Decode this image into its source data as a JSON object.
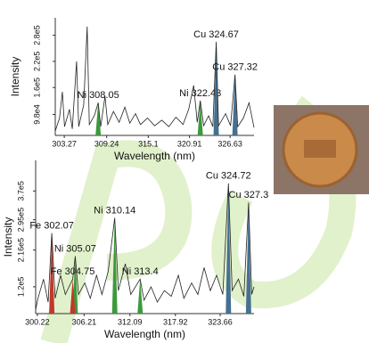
{
  "chart_data": [
    {
      "type": "line",
      "xlabel": "Wavelength (nm)",
      "ylabel": "Intensity",
      "xlim": [
        302,
        330
      ],
      "ylim": [
        50000,
        320000
      ],
      "xticks": [
        303.27,
        309.24,
        315.1,
        320.91,
        326.63
      ],
      "yticks": [
        {
          "value": 98000,
          "label": "9.8e4"
        },
        {
          "value": 160000,
          "label": "1.6e5"
        },
        {
          "value": 220000,
          "label": "2.2e5"
        },
        {
          "value": 280000,
          "label": "2.8e5"
        }
      ],
      "color": "#222222",
      "x": [
        302.0,
        302.6,
        303.0,
        303.3,
        304.0,
        304.4,
        305.0,
        305.3,
        306.0,
        306.5,
        306.8,
        307.5,
        308.05,
        308.4,
        309.0,
        309.4,
        310.2,
        311.0,
        311.8,
        312.5,
        313.3,
        314.0,
        315.0,
        316.0,
        317.0,
        318.0,
        319.0,
        320.0,
        320.8,
        321.5,
        322.0,
        322.43,
        322.9,
        323.6,
        324.2,
        324.67,
        325.0,
        326.0,
        326.7,
        327.32,
        327.7,
        328.5,
        329.3,
        330.0
      ],
      "values": [
        60000,
        90000,
        150000,
        70000,
        110000,
        65000,
        220000,
        70000,
        120000,
        300000,
        75000,
        95000,
        125000,
        70000,
        140000,
        75000,
        105000,
        80000,
        115000,
        78000,
        100000,
        75000,
        90000,
        72000,
        85000,
        70000,
        92000,
        75000,
        110000,
        165000,
        80000,
        130000,
        72000,
        95000,
        70000,
        265000,
        72000,
        100000,
        72000,
        190000,
        70000,
        90000,
        125000,
        68000
      ],
      "annotations": [
        {
          "text": "Ni 308.05",
          "x": 308.05,
          "y": 125000,
          "color": "#3c9a3c"
        },
        {
          "text": "Ni 322.43",
          "x": 322.43,
          "y": 130000,
          "color": "#3c9a3c"
        },
        {
          "text": "Cu 324.67",
          "x": 324.67,
          "y": 265000,
          "color": "#46708f"
        },
        {
          "text": "Cu 327.32",
          "x": 327.32,
          "y": 190000,
          "color": "#46708f"
        }
      ]
    },
    {
      "type": "line",
      "xlabel": "Wavelength (nm)",
      "ylabel": "Intensity",
      "xlim": [
        300,
        328
      ],
      "ylim": [
        50000,
        450000
      ],
      "xticks": [
        300.22,
        306.21,
        312.09,
        317.92,
        323.66
      ],
      "yticks": [
        {
          "value": 120000,
          "label": "1.2e5"
        },
        {
          "value": 216000,
          "label": "2.16e5"
        },
        {
          "value": 295000,
          "label": "2.95e5"
        },
        {
          "value": 370000,
          "label": "3.7e5"
        }
      ],
      "color": "#222222",
      "x": [
        300.0,
        300.3,
        301.0,
        301.6,
        302.07,
        302.5,
        303.2,
        303.8,
        304.75,
        305.07,
        305.5,
        306.3,
        307.0,
        307.8,
        308.5,
        309.3,
        310.14,
        310.6,
        311.5,
        312.2,
        313.4,
        313.9,
        314.8,
        315.6,
        316.5,
        317.4,
        318.3,
        319.0,
        320.0,
        320.8,
        321.6,
        322.4,
        323.2,
        324.0,
        324.72,
        325.2,
        326.0,
        326.7,
        327.3,
        327.7,
        328.0
      ],
      "values": [
        60000,
        90000,
        140000,
        80000,
        260000,
        90000,
        150000,
        100000,
        140000,
        200000,
        100000,
        130000,
        90000,
        150000,
        100000,
        160000,
        300000,
        110000,
        180000,
        100000,
        140000,
        85000,
        120000,
        80000,
        110000,
        95000,
        150000,
        90000,
        130000,
        100000,
        170000,
        110000,
        150000,
        100000,
        390000,
        110000,
        140000,
        95000,
        340000,
        100000,
        120000
      ],
      "annotations": [
        {
          "text": "Fe 302.07",
          "x": 302.07,
          "y": 260000,
          "color": "#c0392b"
        },
        {
          "text": "Ni 305.07",
          "x": 305.07,
          "y": 200000,
          "color": "#3c9a3c"
        },
        {
          "text": "Fe 304.75",
          "x": 304.75,
          "y": 140000,
          "color": "#c0392b"
        },
        {
          "text": "Ni 310.14",
          "x": 310.14,
          "y": 300000,
          "color": "#3c9a3c"
        },
        {
          "text": "Ni 313.4",
          "x": 313.4,
          "y": 140000,
          "color": "#3c9a3c"
        },
        {
          "text": "Cu 324.72",
          "x": 324.72,
          "y": 390000,
          "color": "#46708f"
        },
        {
          "text": "Cu 327.3",
          "x": 327.3,
          "y": 340000,
          "color": "#46708f"
        }
      ]
    }
  ]
}
